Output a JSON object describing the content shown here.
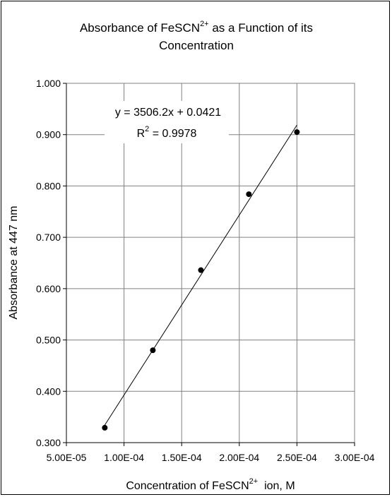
{
  "chart_data": {
    "type": "scatter",
    "title_line1_pre": "Absorbance of FeSCN",
    "title_sup": "2+",
    "title_line1_post": " as a Function of its",
    "title_line2": "Concentration",
    "xlabel_pre": "Concentration of FeSCN",
    "xlabel_sup": "2+",
    "xlabel_post": "  ion, M",
    "ylabel": "Absorbance at 447 nm",
    "xlim": [
      5e-05,
      0.0003
    ],
    "ylim": [
      0.3,
      1.0
    ],
    "x_ticks": [
      5e-05,
      0.0001,
      0.00015,
      0.0002,
      0.00025,
      0.0003
    ],
    "x_tick_labels": [
      "5.00E-05",
      "1.00E-04",
      "1.50E-04",
      "2.00E-04",
      "2.50E-04",
      "3.00E-04"
    ],
    "y_ticks": [
      0.3,
      0.4,
      0.5,
      0.6,
      0.7,
      0.8,
      0.9,
      1.0
    ],
    "y_tick_labels": [
      "0.300",
      "0.400",
      "0.500",
      "0.600",
      "0.700",
      "0.800",
      "0.900",
      "1.000"
    ],
    "grid": true,
    "points": [
      {
        "x": 8.33e-05,
        "y": 0.329
      },
      {
        "x": 0.000125,
        "y": 0.48
      },
      {
        "x": 0.0001667,
        "y": 0.636
      },
      {
        "x": 0.0002083,
        "y": 0.784
      },
      {
        "x": 0.00025,
        "y": 0.905
      }
    ],
    "trendline": {
      "slope": 3506.2,
      "intercept": 0.0421,
      "x_range": [
        8.33e-05,
        0.00025
      ],
      "equation": "y = 3506.2x + 0.0421",
      "r2_pre": "R",
      "r2_sup": "2",
      "r2_post": " = 0.9978"
    }
  }
}
